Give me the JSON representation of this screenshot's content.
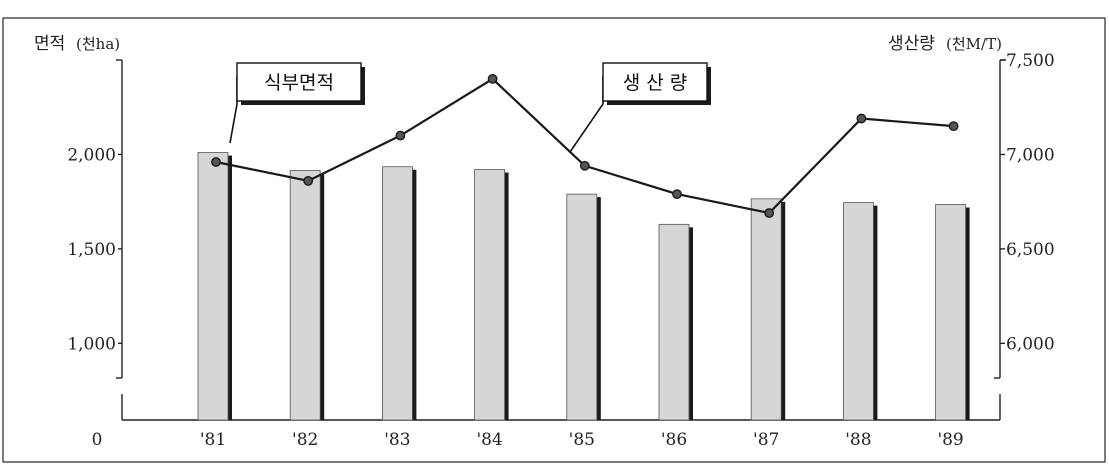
{
  "chart_data": {
    "type": "bar",
    "categories": [
      "'81",
      "'82",
      "'83",
      "'84",
      "'85",
      "'86",
      "'87",
      "'88",
      "'89"
    ],
    "origin_label": "0",
    "series": [
      {
        "name": "식부면적",
        "type": "bar",
        "axis": "left",
        "values": [
          2010,
          1915,
          1935,
          1920,
          1790,
          1630,
          1765,
          1745,
          1735
        ]
      },
      {
        "name": "생 산 량",
        "type": "line",
        "axis": "right",
        "values": [
          6960,
          6860,
          7100,
          7400,
          6940,
          6790,
          6690,
          7190,
          7150
        ]
      }
    ],
    "y_left": {
      "title": "면적",
      "unit": "(천ha)",
      "range": [
        700,
        2500
      ],
      "ticks": [
        1000,
        1500,
        2000
      ],
      "tick_labels": [
        "1,000",
        "1,500",
        "2,000"
      ]
    },
    "y_right": {
      "title": "생산량",
      "unit": "(천M/T)",
      "range": [
        5700,
        7500
      ],
      "ticks": [
        6000,
        6500,
        7000,
        7500
      ],
      "tick_labels": [
        "6,000",
        "6,500",
        "7,000",
        "7,500"
      ]
    },
    "grid": false,
    "legend": "callouts"
  },
  "colors": {
    "bar_fill": "#d6d6d6",
    "bar_shadow": "#1a1a1a",
    "line": "#1a1a1a",
    "axis": "#222222"
  }
}
